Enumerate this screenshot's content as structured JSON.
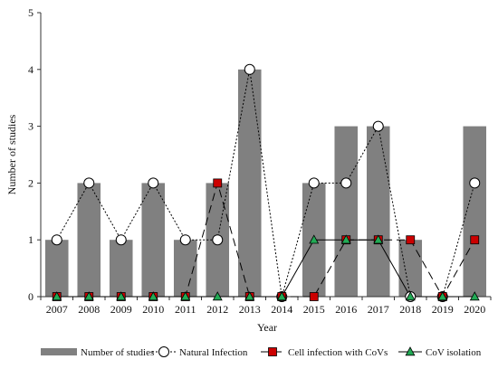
{
  "chart_data": {
    "type": "bar",
    "xlabel": "Year",
    "ylabel": "Number of studies",
    "ylim": [
      0,
      5
    ],
    "yticks": [
      0,
      1,
      2,
      3,
      4,
      5
    ],
    "grid": false,
    "legend_position": "bottom",
    "categories": [
      "2007",
      "2008",
      "2009",
      "2010",
      "2011",
      "2012",
      "2013",
      "2014",
      "2015",
      "2016",
      "2017",
      "2018",
      "2019",
      "2020"
    ],
    "series": [
      {
        "name": "Number of studies",
        "kind": "bar",
        "color": "#808080",
        "values": [
          1,
          2,
          1,
          2,
          1,
          2,
          4,
          0,
          2,
          3,
          3,
          1,
          0,
          3
        ]
      },
      {
        "name": "Natural Infection",
        "kind": "line",
        "line_style": "dotted",
        "marker": "open-circle",
        "color": "#000000",
        "values": [
          1,
          2,
          1,
          2,
          1,
          1,
          4,
          0,
          2,
          2,
          3,
          0,
          0,
          2
        ]
      },
      {
        "name": "Cell infection with CoVs",
        "kind": "line",
        "line_style": "long-dash",
        "marker": "square",
        "color": "#cc0000",
        "values": [
          0,
          0,
          0,
          0,
          0,
          2,
          0,
          0,
          0,
          1,
          1,
          1,
          0,
          1
        ]
      },
      {
        "name": "CoV isolation",
        "kind": "line",
        "line_style": "solid",
        "marker": "triangle",
        "color": "#22aa55",
        "values": [
          0,
          0,
          0,
          0,
          0,
          0,
          0,
          0,
          1,
          1,
          1,
          0,
          0,
          0
        ]
      }
    ]
  }
}
